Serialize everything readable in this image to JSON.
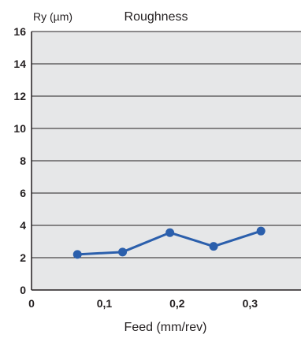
{
  "chart_data": {
    "type": "line",
    "title": "Roughness",
    "ylabel": "Ry (µm)",
    "xlabel": "Feed (mm/rev)",
    "xlim": [
      0,
      0.37
    ],
    "ylim": [
      0,
      16
    ],
    "x_ticks": [
      {
        "value": 0,
        "label": "0"
      },
      {
        "value": 0.1,
        "label": "0,1"
      },
      {
        "value": 0.2,
        "label": "0,2"
      },
      {
        "value": 0.3,
        "label": "0,3"
      }
    ],
    "y_ticks": [
      {
        "value": 0,
        "label": "0"
      },
      {
        "value": 2,
        "label": "2"
      },
      {
        "value": 4,
        "label": "4"
      },
      {
        "value": 6,
        "label": "6"
      },
      {
        "value": 8,
        "label": "8"
      },
      {
        "value": 10,
        "label": "10"
      },
      {
        "value": 12,
        "label": "12"
      },
      {
        "value": 14,
        "label": "14"
      },
      {
        "value": 16,
        "label": "16"
      }
    ],
    "grid": true,
    "series": [
      {
        "color": "#2b5fac",
        "points": [
          {
            "x": 0.063,
            "y": 2.2
          },
          {
            "x": 0.125,
            "y": 2.35
          },
          {
            "x": 0.19,
            "y": 3.55
          },
          {
            "x": 0.25,
            "y": 2.7
          },
          {
            "x": 0.315,
            "y": 3.65
          }
        ]
      }
    ],
    "colors": {
      "plot_background": "#e6e7e8",
      "grid": "#231f20",
      "axis": "#231f20"
    }
  }
}
